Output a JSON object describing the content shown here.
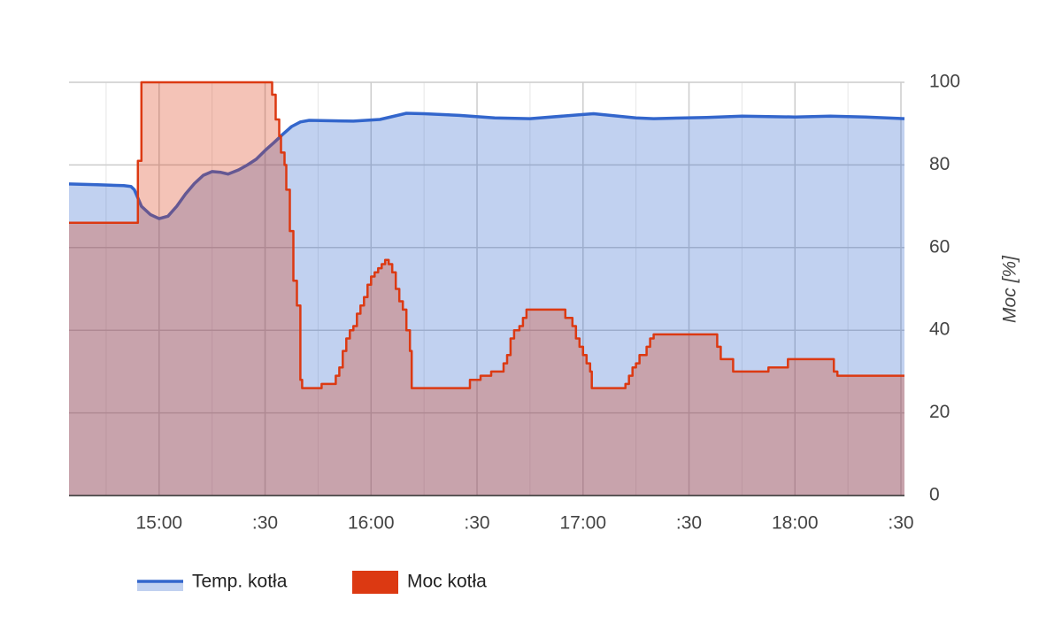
{
  "chart_data": {
    "type": "area",
    "step_series": "Moc kotła",
    "y_axis_title": "Moc [%]",
    "xlim": [
      874.5,
      1111
    ],
    "xticks": [
      {
        "value": 900,
        "label": "15:00"
      },
      {
        "value": 930,
        "label": ":30"
      },
      {
        "value": 960,
        "label": "16:00"
      },
      {
        "value": 990,
        "label": ":30"
      },
      {
        "value": 1020,
        "label": "17:00"
      },
      {
        "value": 1050,
        "label": ":30"
      },
      {
        "value": 1080,
        "label": "18:00"
      },
      {
        "value": 1110,
        "label": ":30"
      }
    ],
    "minor_xticks": [
      885,
      915,
      945,
      975,
      1005,
      1035,
      1065,
      1095
    ],
    "ylim": [
      0,
      100
    ],
    "yticks": [
      0,
      20,
      40,
      60,
      80,
      100
    ],
    "grid": true,
    "legend": "bottom",
    "series": [
      {
        "name": "Temp. kotła",
        "color": "#3366cc",
        "x": [
          874.5,
          882.5,
          890,
          892,
          893,
          895,
          897.5,
          900,
          902.5,
          905,
          907.5,
          910,
          912.5,
          915,
          917.5,
          919.5,
          922.5,
          925,
          927.5,
          930,
          932.5,
          935,
          937.5,
          940,
          942.5,
          955,
          962.5,
          970,
          975,
          985,
          995,
          1005,
          1020,
          1023,
          1035,
          1040,
          1055,
          1065,
          1080,
          1090,
          1100,
          1111
        ],
        "values": [
          75.4,
          75.2,
          75,
          74.8,
          74,
          70,
          68,
          67,
          67.6,
          70,
          73,
          75.5,
          77.5,
          78.4,
          78.2,
          77.8,
          78.8,
          80,
          81.4,
          83.5,
          85.4,
          87.4,
          89.3,
          90.4,
          90.8,
          90.6,
          91,
          92.5,
          92.4,
          92,
          91.4,
          91.2,
          92.2,
          92.4,
          91.4,
          91.2,
          91.5,
          91.8,
          91.6,
          91.8,
          91.6,
          91.2
        ]
      },
      {
        "name": "Moc kotła",
        "color": "#dc3912",
        "x": [
          874.5,
          894,
          895,
          932,
          933,
          934,
          934.5,
          935.5,
          936,
          937,
          938,
          939,
          940,
          940.5,
          946,
          950,
          951,
          952,
          953,
          954,
          955,
          956,
          957,
          958,
          959,
          960,
          961,
          962,
          963,
          964,
          965,
          966,
          967,
          968,
          969,
          970,
          971,
          971.5,
          988,
          991,
          994,
          997.5,
          998.5,
          999.5,
          1000.5,
          1002,
          1003,
          1004,
          1015,
          1017,
          1018,
          1019,
          1020,
          1021,
          1022,
          1022.5,
          1032,
          1033,
          1034,
          1035,
          1036,
          1038,
          1039,
          1040,
          1058,
          1059,
          1062.5,
          1072.5,
          1078,
          1091,
          1092,
          1111
        ],
        "values": [
          66,
          81,
          100,
          97,
          91,
          87,
          83,
          80,
          74,
          64,
          52,
          46,
          28,
          26,
          27,
          29,
          31,
          35,
          38,
          40,
          41,
          44,
          46,
          48,
          51,
          53,
          54,
          55,
          56,
          57,
          56,
          54,
          50,
          47,
          45,
          40,
          35,
          26,
          28,
          29,
          30,
          32,
          34,
          38,
          40,
          41,
          43,
          45,
          43,
          41,
          38,
          36,
          34,
          32,
          30,
          26,
          27,
          29,
          31,
          32,
          34,
          36,
          38,
          39,
          36,
          33,
          30,
          31,
          33,
          30,
          29,
          29
        ]
      }
    ]
  }
}
